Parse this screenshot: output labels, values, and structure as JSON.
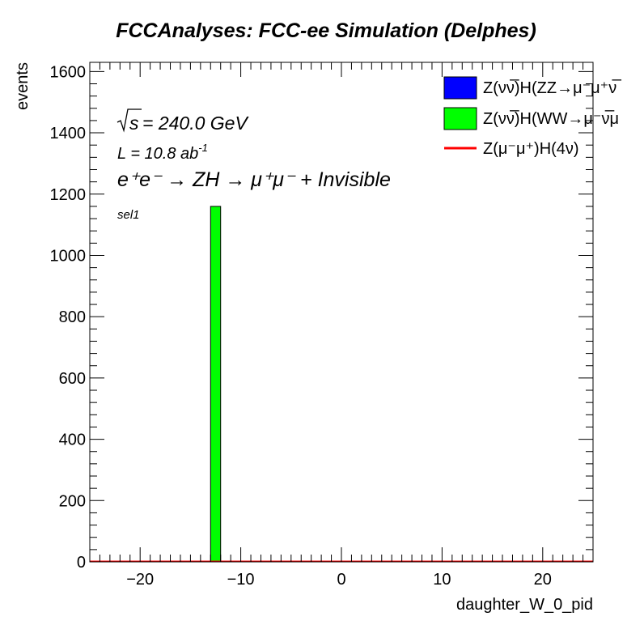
{
  "chart_data": {
    "type": "bar",
    "title": "FCCAnalyses: FCC-ee Simulation (Delphes)",
    "xlabel": "daughter_W_0_pid",
    "ylabel": "events",
    "xlim": [
      -25,
      25
    ],
    "ylim": [
      0,
      1630
    ],
    "x_ticks": [
      -20,
      -10,
      0,
      10,
      20
    ],
    "x_tick_labels": [
      "−20",
      "−10",
      "0",
      "10",
      "20"
    ],
    "y_ticks": [
      0,
      200,
      400,
      600,
      800,
      1000,
      1200,
      1400,
      1600
    ],
    "grid": false,
    "legend_position": "top-right",
    "annotations": {
      "sqrt_s_prefix": "s",
      "sqrt_s_value": " = 240.0 GeV",
      "lumi_prefix": "L = 10.8 ab",
      "lumi_exp": "-1",
      "process": "e⁺e⁻ → ZH → μ⁺μ⁻ + Invisible",
      "selection": "sel1"
    },
    "series": [
      {
        "name": "Z(νν̅)H(ZZ→μ⁻μ⁺ν̅",
        "style": "filled",
        "color": "#0000ff",
        "bins": []
      },
      {
        "name": "Z(νν̅)H(WW→μ⁻ν̅μ",
        "style": "filled",
        "color": "#00ff00",
        "bins": [
          {
            "x0": -13,
            "x1": -12,
            "value": 1160
          }
        ]
      },
      {
        "name": "Z(μ⁻μ⁺)H(4ν)",
        "style": "line",
        "color": "#ff0000",
        "bins": []
      }
    ]
  }
}
